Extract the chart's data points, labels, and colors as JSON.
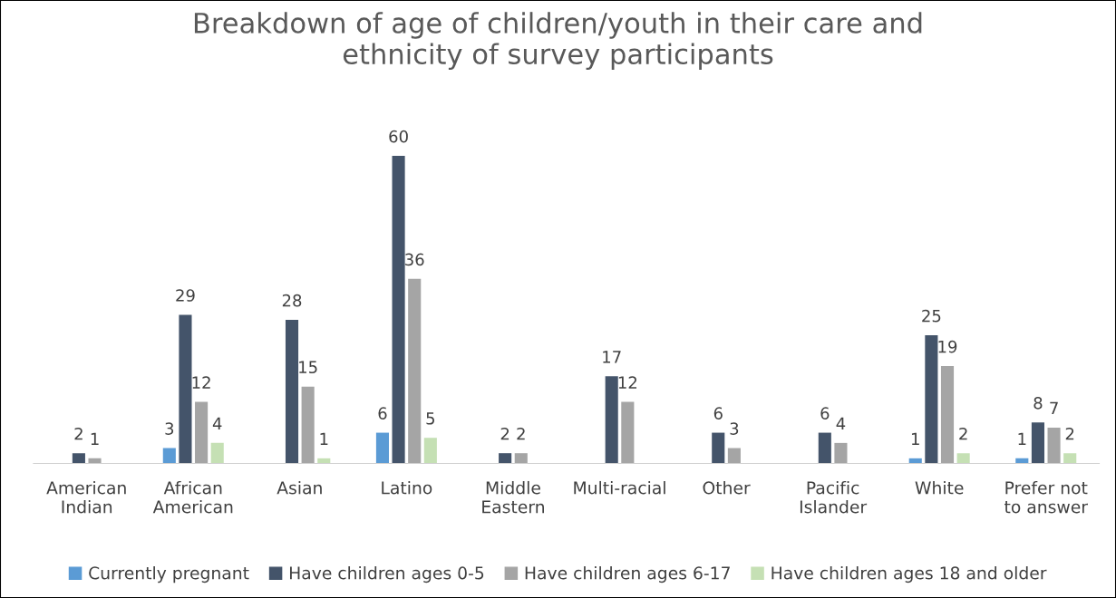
{
  "chart_data": {
    "type": "bar",
    "title": "Breakdown of age of children/youth in their care and\nethnicity of survey participants",
    "categories": [
      "American\nIndian",
      "African\nAmerican",
      "Asian",
      "Latino",
      "Middle\nEastern",
      "Multi-racial",
      "Other",
      "Pacific\nIslander",
      "White",
      "Prefer not\nto answer"
    ],
    "series": [
      {
        "name": "Currently pregnant",
        "color": "#5b9bd5",
        "values": [
          null,
          3,
          null,
          6,
          null,
          null,
          null,
          null,
          1,
          1
        ]
      },
      {
        "name": "Have children ages 0-5",
        "color": "#44546a",
        "values": [
          2,
          29,
          28,
          60,
          2,
          17,
          6,
          6,
          25,
          8
        ]
      },
      {
        "name": "Have children ages 6-17",
        "color": "#a5a5a5",
        "values": [
          1,
          12,
          15,
          36,
          2,
          12,
          3,
          4,
          19,
          7
        ]
      },
      {
        "name": "Have children ages 18 and older",
        "color": "#c5e0b4",
        "values": [
          null,
          4,
          1,
          5,
          null,
          null,
          null,
          null,
          2,
          2
        ]
      }
    ],
    "data_labels": true,
    "legend": "bottom",
    "grid": false
  }
}
